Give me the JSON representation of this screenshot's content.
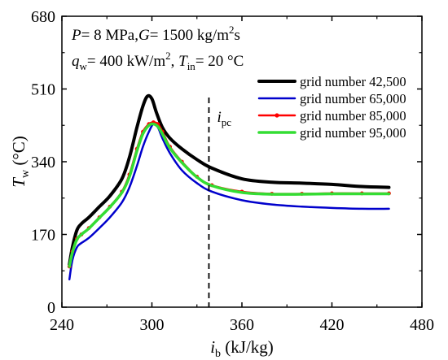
{
  "chart_data": {
    "type": "line",
    "xlabel": {
      "symbol": "i",
      "sub": "b",
      "unit": " (kJ/kg)"
    },
    "ylabel": {
      "symbol": "T",
      "sub": "w",
      "unit": " (°C)"
    },
    "xlim": [
      240,
      480
    ],
    "ylim": [
      0,
      680
    ],
    "xticks": [
      240,
      300,
      360,
      420,
      480
    ],
    "yticks": [
      0,
      170,
      340,
      510,
      680
    ],
    "conditions": {
      "line1": {
        "p_sym": "P",
        "p_val": "= 8 MPa,",
        "g_sym": "G",
        "g_val": "= 1500 kg/m",
        "g_sup": "2",
        "g_end": "s"
      },
      "line2": {
        "q_sym": "q",
        "q_sub": "w",
        "q_val": "= 400 kW/m",
        "q_sup": "2",
        "q_sep": ", ",
        "t_sym": "T",
        "t_sub": "in",
        "t_val": "= 20 °C"
      }
    },
    "pseudocritical_line": {
      "x": 338,
      "label_sym": "i",
      "label_sub": "pc"
    },
    "legend_position": "top-right",
    "series": [
      {
        "name": "grid number 42,500",
        "color": "#000000",
        "width": 4,
        "marker": false,
        "x": [
          245,
          247,
          250,
          253,
          258,
          265,
          272,
          280,
          285,
          290,
          294,
          297,
          300,
          303,
          307,
          312,
          320,
          330,
          340,
          360,
          380,
          400,
          420,
          440,
          458
        ],
        "y": [
          100,
          140,
          180,
          195,
          210,
          235,
          260,
          300,
          350,
          420,
          470,
          493,
          487,
          455,
          420,
          395,
          370,
          345,
          325,
          300,
          292,
          290,
          287,
          282,
          280
        ]
      },
      {
        "name": "grid number 65,000",
        "color": "#0000cc",
        "width": 2.5,
        "marker": false,
        "x": [
          245,
          247,
          250,
          253,
          258,
          265,
          272,
          280,
          285,
          290,
          294,
          298,
          301,
          304,
          307,
          312,
          320,
          330,
          340,
          360,
          380,
          400,
          420,
          440,
          458
        ],
        "y": [
          65,
          110,
          140,
          150,
          162,
          185,
          210,
          245,
          280,
          330,
          375,
          410,
          428,
          420,
          395,
          360,
          320,
          290,
          270,
          250,
          240,
          235,
          232,
          230,
          230
        ]
      },
      {
        "name": "grid number 85,000",
        "color": "#ff0000",
        "width": 2.5,
        "marker": true,
        "x": [
          245,
          247,
          250,
          253,
          258,
          265,
          272,
          280,
          285,
          290,
          294,
          298,
          301,
          304,
          307,
          312,
          320,
          330,
          340,
          360,
          380,
          400,
          420,
          440,
          458
        ],
        "y": [
          95,
          130,
          160,
          170,
          185,
          210,
          235,
          270,
          310,
          370,
          410,
          428,
          432,
          428,
          410,
          375,
          340,
          305,
          285,
          270,
          265,
          265,
          266,
          266,
          266
        ]
      },
      {
        "name": "grid number 95,000",
        "color": "#33dd33",
        "width": 3.5,
        "marker": false,
        "x": [
          245,
          247,
          250,
          253,
          258,
          265,
          272,
          280,
          285,
          290,
          294,
          298,
          301,
          304,
          307,
          312,
          320,
          330,
          340,
          360,
          380,
          400,
          420,
          440,
          458
        ],
        "y": [
          95,
          128,
          158,
          170,
          184,
          209,
          234,
          268,
          305,
          365,
          405,
          425,
          428,
          422,
          405,
          372,
          338,
          304,
          284,
          268,
          264,
          264,
          265,
          265,
          265
        ]
      }
    ]
  }
}
